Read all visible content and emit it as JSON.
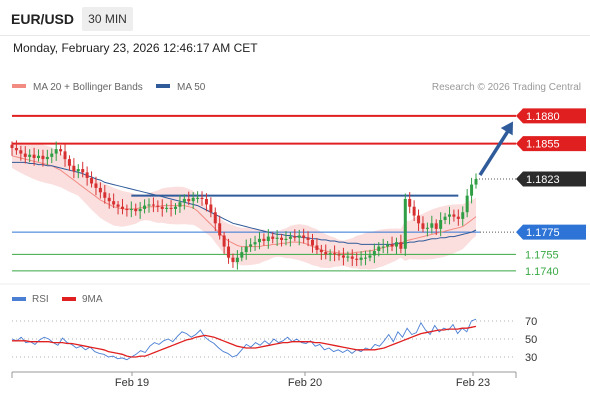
{
  "header": {
    "instrument": "EUR/USD",
    "timeframe": "30 MIN",
    "timestamp": "Monday, February 23, 2026 12:46:17 AM CET"
  },
  "legend": {
    "items": [
      {
        "label": "MA 20 + Bollinger Bands",
        "color": "#f28b82"
      },
      {
        "label": "MA 50",
        "color": "#2f5b9a"
      }
    ],
    "credit": "Research © 2026 Trading Central"
  },
  "chart_data": [
    {
      "type": "candlestick",
      "ylim": [
        1.173,
        1.1898
      ],
      "x_ticks": [
        "Feb 19",
        "Feb 20",
        "Feb 23"
      ],
      "levels": [
        {
          "value": 1.188,
          "label": "1.1880",
          "kind": "resistance"
        },
        {
          "value": 1.1855,
          "label": "1.1855",
          "kind": "resistance"
        },
        {
          "value": 1.1823,
          "label": "1.1823",
          "kind": "last_price"
        },
        {
          "value": 1.1775,
          "label": "1.1775",
          "kind": "pivot"
        },
        {
          "value": 1.1755,
          "label": "1.1755",
          "kind": "support"
        },
        {
          "value": 1.174,
          "label": "1.1740",
          "kind": "support"
        }
      ],
      "trend_line_value": 1.1808,
      "arrow_target": 1.1875,
      "colors": {
        "resistance": "#e02020",
        "pivot": "#2e74d6",
        "support": "#39a845",
        "ma20": "#f28b82",
        "ma50": "#2f5b9a",
        "band": "#f9d3d3",
        "up": "#2f9e44",
        "down": "#d63031"
      },
      "close": [
        1.1851,
        1.1849,
        1.1846,
        1.1843,
        1.1845,
        1.1842,
        1.1844,
        1.1841,
        1.1843,
        1.1846,
        1.185,
        1.1848,
        1.1841,
        1.1835,
        1.183,
        1.1832,
        1.1829,
        1.1824,
        1.1819,
        1.1815,
        1.1811,
        1.1806,
        1.1803,
        1.18,
        1.1798,
        1.1796,
        1.1795,
        1.1796,
        1.1794,
        1.1796,
        1.1799,
        1.18,
        1.1799,
        1.1798,
        1.1796,
        1.1797,
        1.1796,
        1.1798,
        1.1802,
        1.1805,
        1.1803,
        1.1806,
        1.1806,
        1.1805,
        1.18,
        1.1793,
        1.1783,
        1.1772,
        1.1762,
        1.1752,
        1.1748,
        1.1752,
        1.1757,
        1.1762,
        1.1764,
        1.1766,
        1.1769,
        1.1767,
        1.1771,
        1.1769,
        1.177,
        1.1768,
        1.1769,
        1.1771,
        1.177,
        1.1772,
        1.177,
        1.1768,
        1.1763,
        1.1759,
        1.1757,
        1.1755,
        1.1756,
        1.1755,
        1.1754,
        1.1752,
        1.1753,
        1.1751,
        1.175,
        1.1752,
        1.1752,
        1.1754,
        1.1758,
        1.1762,
        1.1762,
        1.1764,
        1.1762,
        1.1766,
        1.176,
        1.1805,
        1.1798,
        1.179,
        1.1783,
        1.1778,
        1.1779,
        1.1783,
        1.1778,
        1.1786,
        1.1789,
        1.1791,
        1.1789,
        1.1787,
        1.1793,
        1.1808,
        1.1818,
        1.1823
      ],
      "ma20": [
        1.1844,
        1.1843,
        1.1842,
        1.1841,
        1.184,
        1.1839,
        1.1838,
        1.1837,
        1.1836,
        1.1835,
        1.1833,
        1.1831,
        1.1828,
        1.1825,
        1.1822,
        1.1819,
        1.1816,
        1.1813,
        1.181,
        1.1807,
        1.1804,
        1.1802,
        1.18,
        1.1798,
        1.1797,
        1.1796,
        1.1796,
        1.1796,
        1.1796,
        1.1797,
        1.1797,
        1.1798,
        1.1798,
        1.1798,
        1.1799,
        1.1799,
        1.1799,
        1.1799,
        1.1799,
        1.1799,
        1.1798,
        1.1797,
        1.1794,
        1.179,
        1.1786,
        1.1782,
        1.1778,
        1.1774,
        1.177,
        1.1767,
        1.1765,
        1.1763,
        1.1762,
        1.1762,
        1.1762,
        1.1762,
        1.1762,
        1.1763,
        1.1763,
        1.1764,
        1.1764,
        1.1765,
        1.1765,
        1.1766,
        1.1766,
        1.1766,
        1.1765,
        1.1764,
        1.1762,
        1.1761,
        1.1759,
        1.1758,
        1.1757,
        1.1757,
        1.1756,
        1.1756,
        1.1756,
        1.1756,
        1.1757,
        1.1757,
        1.1758,
        1.1758,
        1.1759,
        1.176,
        1.1761,
        1.1762,
        1.1763,
        1.1764,
        1.1765,
        1.1767,
        1.1768,
        1.1769,
        1.177,
        1.1771,
        1.1772,
        1.1773,
        1.1774,
        1.1775,
        1.1776,
        1.1777,
        1.1778,
        1.1779,
        1.178,
        1.1783,
        1.1786,
        1.1789
      ],
      "ma50": [
        1.1838,
        1.1838,
        1.1838,
        1.1838,
        1.1837,
        1.1837,
        1.1836,
        1.1836,
        1.1835,
        1.1835,
        1.1834,
        1.1833,
        1.1832,
        1.1831,
        1.183,
        1.1829,
        1.1828,
        1.1826,
        1.1825,
        1.1823,
        1.1822,
        1.182,
        1.1819,
        1.1818,
        1.1817,
        1.1816,
        1.1815,
        1.1814,
        1.1813,
        1.1812,
        1.1811,
        1.181,
        1.1809,
        1.1808,
        1.1807,
        1.1806,
        1.1805,
        1.1804,
        1.1803,
        1.1802,
        1.1801,
        1.18,
        1.1799,
        1.1797,
        1.1795,
        1.1793,
        1.1791,
        1.1789,
        1.1787,
        1.1785,
        1.1783,
        1.1782,
        1.1781,
        1.178,
        1.1779,
        1.1778,
        1.1777,
        1.1776,
        1.1775,
        1.1774,
        1.1773,
        1.1773,
        1.1772,
        1.1772,
        1.1771,
        1.1771,
        1.177,
        1.177,
        1.1769,
        1.1769,
        1.1768,
        1.1768,
        1.1767,
        1.1767,
        1.1766,
        1.1766,
        1.1765,
        1.1765,
        1.1765,
        1.1764,
        1.1764,
        1.1764,
        1.1764,
        1.1764,
        1.1764,
        1.1764,
        1.1764,
        1.1765,
        1.1765,
        1.1765,
        1.1766,
        1.1766,
        1.1767,
        1.1767,
        1.1768,
        1.1769,
        1.1769,
        1.177,
        1.177,
        1.1771,
        1.1771,
        1.1772,
        1.1773,
        1.1774,
        1.1775,
        1.1777
      ]
    },
    {
      "type": "line",
      "name": "RSI",
      "ylim": [
        20,
        80
      ],
      "y_ticks": [
        "70",
        "50",
        "30"
      ],
      "y_tick_values": [
        70,
        50,
        30
      ],
      "series": [
        {
          "name": "RSI",
          "color": "#4a7fd4"
        },
        {
          "name": "9MA",
          "color": "#e02020"
        }
      ],
      "rsi": [
        50,
        48,
        52,
        46,
        47,
        44,
        49,
        52,
        50,
        46,
        43,
        51,
        46,
        44,
        40,
        42,
        38,
        41,
        36,
        34,
        33,
        30,
        31,
        28,
        29,
        27,
        30,
        33,
        37,
        35,
        42,
        46,
        44,
        48,
        50,
        47,
        53,
        58,
        56,
        52,
        55,
        60,
        52,
        48,
        45,
        40,
        36,
        34,
        30,
        32,
        38,
        44,
        41,
        46,
        43,
        48,
        44,
        50,
        46,
        48,
        52,
        47,
        50,
        46,
        45,
        48,
        42,
        44,
        38,
        40,
        36,
        38,
        35,
        38,
        34,
        38,
        36,
        40,
        38,
        44,
        42,
        48,
        55,
        47,
        58,
        52,
        62,
        55,
        57,
        68,
        60,
        55,
        65,
        58,
        62,
        60,
        66,
        56,
        62,
        58,
        70,
        72
      ],
      "ma9": [
        48,
        48,
        48,
        48,
        47,
        47,
        47,
        47,
        47,
        46,
        46,
        46,
        45,
        45,
        44,
        43,
        42,
        41,
        40,
        39,
        38,
        36,
        35,
        34,
        33,
        31,
        30,
        30,
        31,
        31,
        33,
        35,
        37,
        39,
        41,
        43,
        45,
        47,
        49,
        50,
        52,
        53,
        54,
        53,
        52,
        50,
        48,
        46,
        44,
        42,
        41,
        40,
        40,
        40,
        41,
        42,
        43,
        44,
        45,
        46,
        46,
        47,
        47,
        47,
        47,
        47,
        46,
        46,
        45,
        44,
        43,
        42,
        41,
        40,
        39,
        38,
        38,
        38,
        38,
        38,
        39,
        40,
        42,
        44,
        46,
        48,
        50,
        52,
        54,
        56,
        57,
        58,
        59,
        60,
        60,
        61,
        61,
        61,
        62,
        62,
        63,
        64
      ]
    }
  ]
}
